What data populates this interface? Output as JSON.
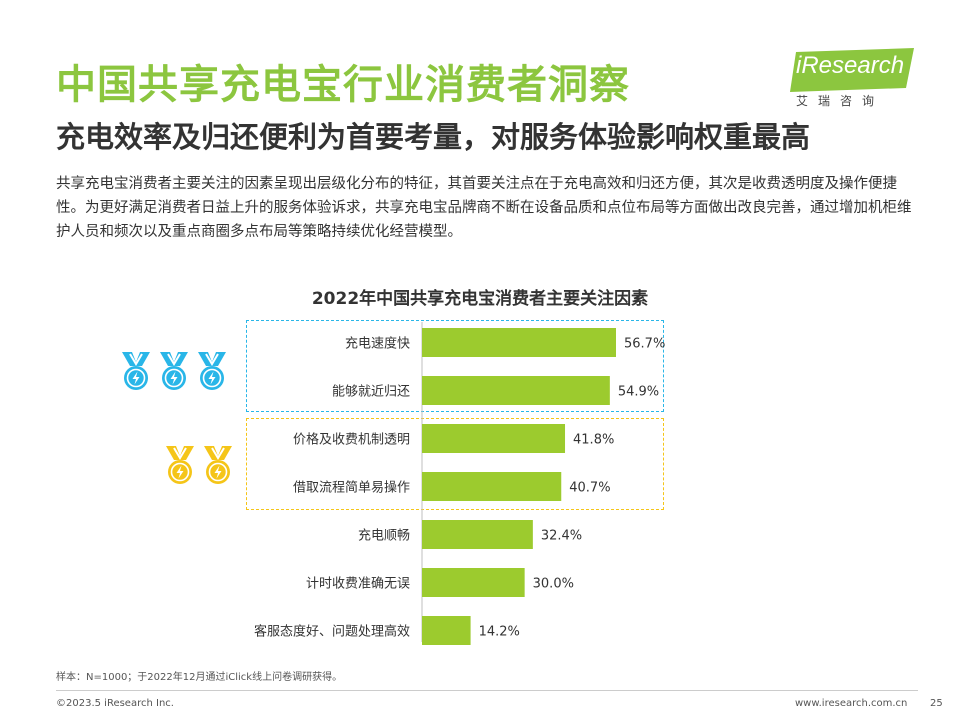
{
  "page": {
    "title": "中国共享充电宝行业消费者洞察",
    "subtitle": "充电效率及归还便利为首要考量，对服务体验影响权重最高",
    "description": "共享充电宝消费者主要关注的因素呈现出层级化分布的特征，其首要关注点在于充电高效和归还方便，其次是收费透明度及操作便捷性。为更好满足消费者日益上升的服务体验诉求，共享充电宝品牌商不断在设备品质和点位布局等方面做出改良完善，通过增加机柜维护人员和频次以及重点商圈多点布局等策略持续优化经营模型。",
    "logo_text": "iResearch",
    "logo_subtext": "艾瑞咨询",
    "footnote": "样本：N=1000；于2022年12月通过iClick线上问卷调研获得。",
    "copyright": "©2023.5 iResearch Inc.",
    "website": "www.iresearch.com.cn",
    "page_number": "25"
  },
  "colors": {
    "title_green": "#8cc63f",
    "bar_green": "#9ccb2e",
    "tier1_blue": "#29b6e8",
    "tier2_yellow": "#f5c518"
  },
  "icons": {
    "tier1": "medal-icon",
    "tier2": "medal-icon"
  },
  "chart_data": {
    "type": "bar",
    "orientation": "horizontal",
    "title": "2022年中国共享充电宝消费者主要关注因素",
    "categories": [
      "充电速度快",
      "能够就近归还",
      "价格及收费机制透明",
      "借取流程简单易操作",
      "充电顺畅",
      "计时收费准确无误",
      "客服态度好、问题处理高效"
    ],
    "values": [
      56.7,
      54.9,
      41.8,
      40.7,
      32.4,
      30.0,
      14.2
    ],
    "value_labels": [
      "56.7%",
      "54.9%",
      "41.8%",
      "40.7%",
      "32.4%",
      "30.0%",
      "14.2%"
    ],
    "unit": "%",
    "xlim": [
      0,
      60
    ],
    "groups": [
      {
        "tier": 1,
        "categories": [
          "充电速度快",
          "能够就近归还"
        ],
        "medals": 3,
        "color": "#29b6e8"
      },
      {
        "tier": 2,
        "categories": [
          "价格及收费机制透明",
          "借取流程简单易操作"
        ],
        "medals": 2,
        "color": "#f5c518"
      }
    ],
    "grid": false,
    "legend": "none"
  }
}
